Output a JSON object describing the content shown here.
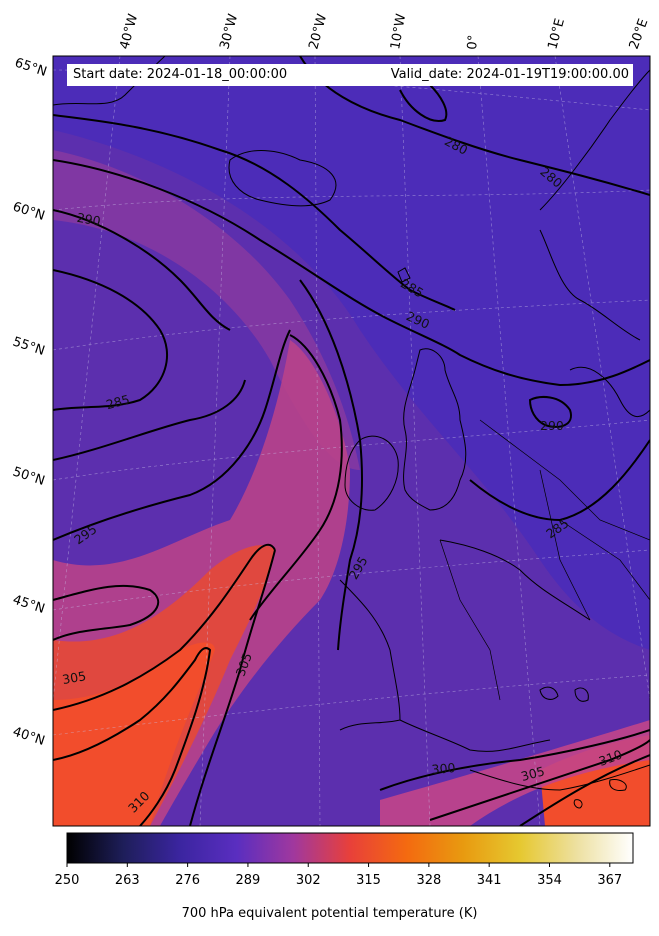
{
  "header": {
    "start_date": "Start date: 2024-01-18_00:00:00",
    "valid_date": "Valid_date: 2024-01-19T19:00:00.00"
  },
  "map": {
    "longitude_labels": [
      "40°W",
      "30°W",
      "20°W",
      "10°W",
      "0°",
      "10°E",
      "20°E"
    ],
    "latitude_labels": [
      "65°N",
      "60°N",
      "55°N",
      "50°N",
      "45°N",
      "40°N"
    ],
    "contour_labels": [
      "280",
      "280",
      "285",
      "285",
      "285",
      "290",
      "290",
      "290",
      "295",
      "295",
      "300",
      "305",
      "305",
      "305",
      "310",
      "310"
    ]
  },
  "colorbar": {
    "label": "700 hPa equivalent potential temperature (K)",
    "ticks": [
      "250",
      "263",
      "276",
      "289",
      "302",
      "315",
      "328",
      "341",
      "354",
      "367"
    ],
    "range": [
      250,
      372
    ],
    "colormap": "CMRmap-like",
    "color_stops": [
      "#000000",
      "#1e1e5a",
      "#3b25a0",
      "#5a2ec0",
      "#a0389e",
      "#e8403a",
      "#f46a10",
      "#e89a10",
      "#e6c830",
      "#ede0a0",
      "#ffffff"
    ]
  }
}
